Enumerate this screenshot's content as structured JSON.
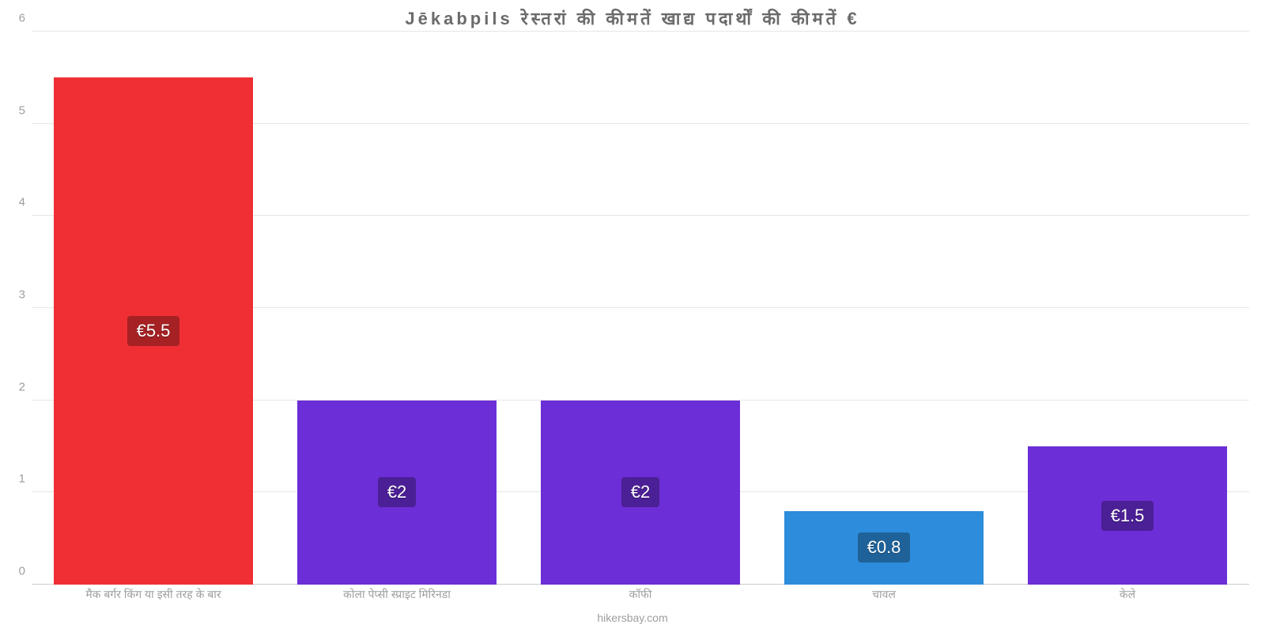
{
  "chart": {
    "type": "bar",
    "title": "Jēkabpils रेस्तरां की कीमतें खाद्य पदार्थों की कीमतें €",
    "title_fontsize": 22,
    "title_color": "#6b6b6b",
    "background_color": "#ffffff",
    "grid_color": "#e6e6e6",
    "baseline_color": "#cccccc",
    "ylim": [
      0,
      6
    ],
    "yticks": [
      0,
      1,
      2,
      3,
      4,
      5,
      6
    ],
    "ytick_fontsize": 15,
    "ytick_color": "#9e9e9e",
    "xtick_fontsize": 14,
    "xtick_color": "#9e9e9e",
    "bar_width_pct": 82,
    "value_label_fontsize": 22,
    "categories": [
      "मैक बर्गर किंग या इसी तरह के बार",
      "कोला पेप्सी स्प्राइट मिरिनडा",
      "कॉफी",
      "चावल",
      "केले"
    ],
    "values": [
      5.5,
      2,
      2,
      0.8,
      1.5
    ],
    "display_values": [
      "€5.5",
      "€2",
      "€2",
      "€0.8",
      "€1.5"
    ],
    "bar_colors": [
      "#ef2f33",
      "#6c2ed6",
      "#6c2ed6",
      "#2d8cdb",
      "#6c2ed6"
    ],
    "value_label_bg": [
      "#a52123",
      "#4b1f95",
      "#4b1f95",
      "#1f6299",
      "#4b1f95"
    ],
    "credit": "hikersbay.com",
    "credit_fontsize": 14,
    "credit_color": "#9e9e9e"
  }
}
